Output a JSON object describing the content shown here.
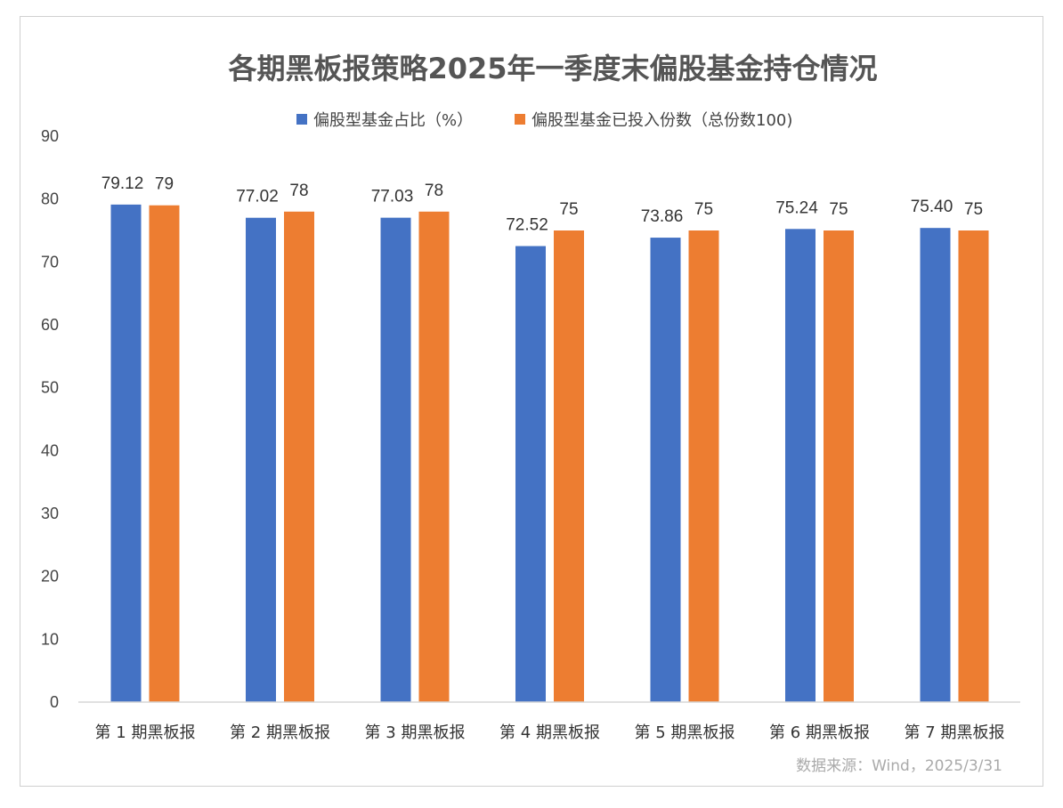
{
  "chart_data": {
    "type": "bar",
    "title": "各期黑板报策略2025年一季度末偏股基金持仓情况",
    "categories": [
      "第 1 期黑板报",
      "第 2 期黑板报",
      "第 3 期黑板报",
      "第 4 期黑板报",
      "第 5 期黑板报",
      "第 6 期黑板报",
      "第 7 期黑板报"
    ],
    "series": [
      {
        "name": "偏股型基金占比（%）",
        "color": "#4472C4",
        "values": [
          79.12,
          77.02,
          77.03,
          72.52,
          73.86,
          75.24,
          75.4
        ],
        "labels": [
          "79.12",
          "77.02",
          "77.03",
          "72.52",
          "73.86",
          "75.24",
          "75.40"
        ]
      },
      {
        "name": "偏股型基金已投入份数（总份数100)",
        "color": "#ED7D31",
        "values": [
          79,
          78,
          78,
          75,
          75,
          75,
          75
        ],
        "labels": [
          "79",
          "78",
          "78",
          "75",
          "75",
          "75",
          "75"
        ]
      }
    ],
    "yticks": [
      "0",
      "10",
      "20",
      "30",
      "40",
      "50",
      "60",
      "70",
      "80",
      "90"
    ],
    "ylim": [
      0,
      90
    ],
    "legend_position": "top",
    "gridlines": false,
    "source": "数据来源：Wind，2025/3/31"
  }
}
